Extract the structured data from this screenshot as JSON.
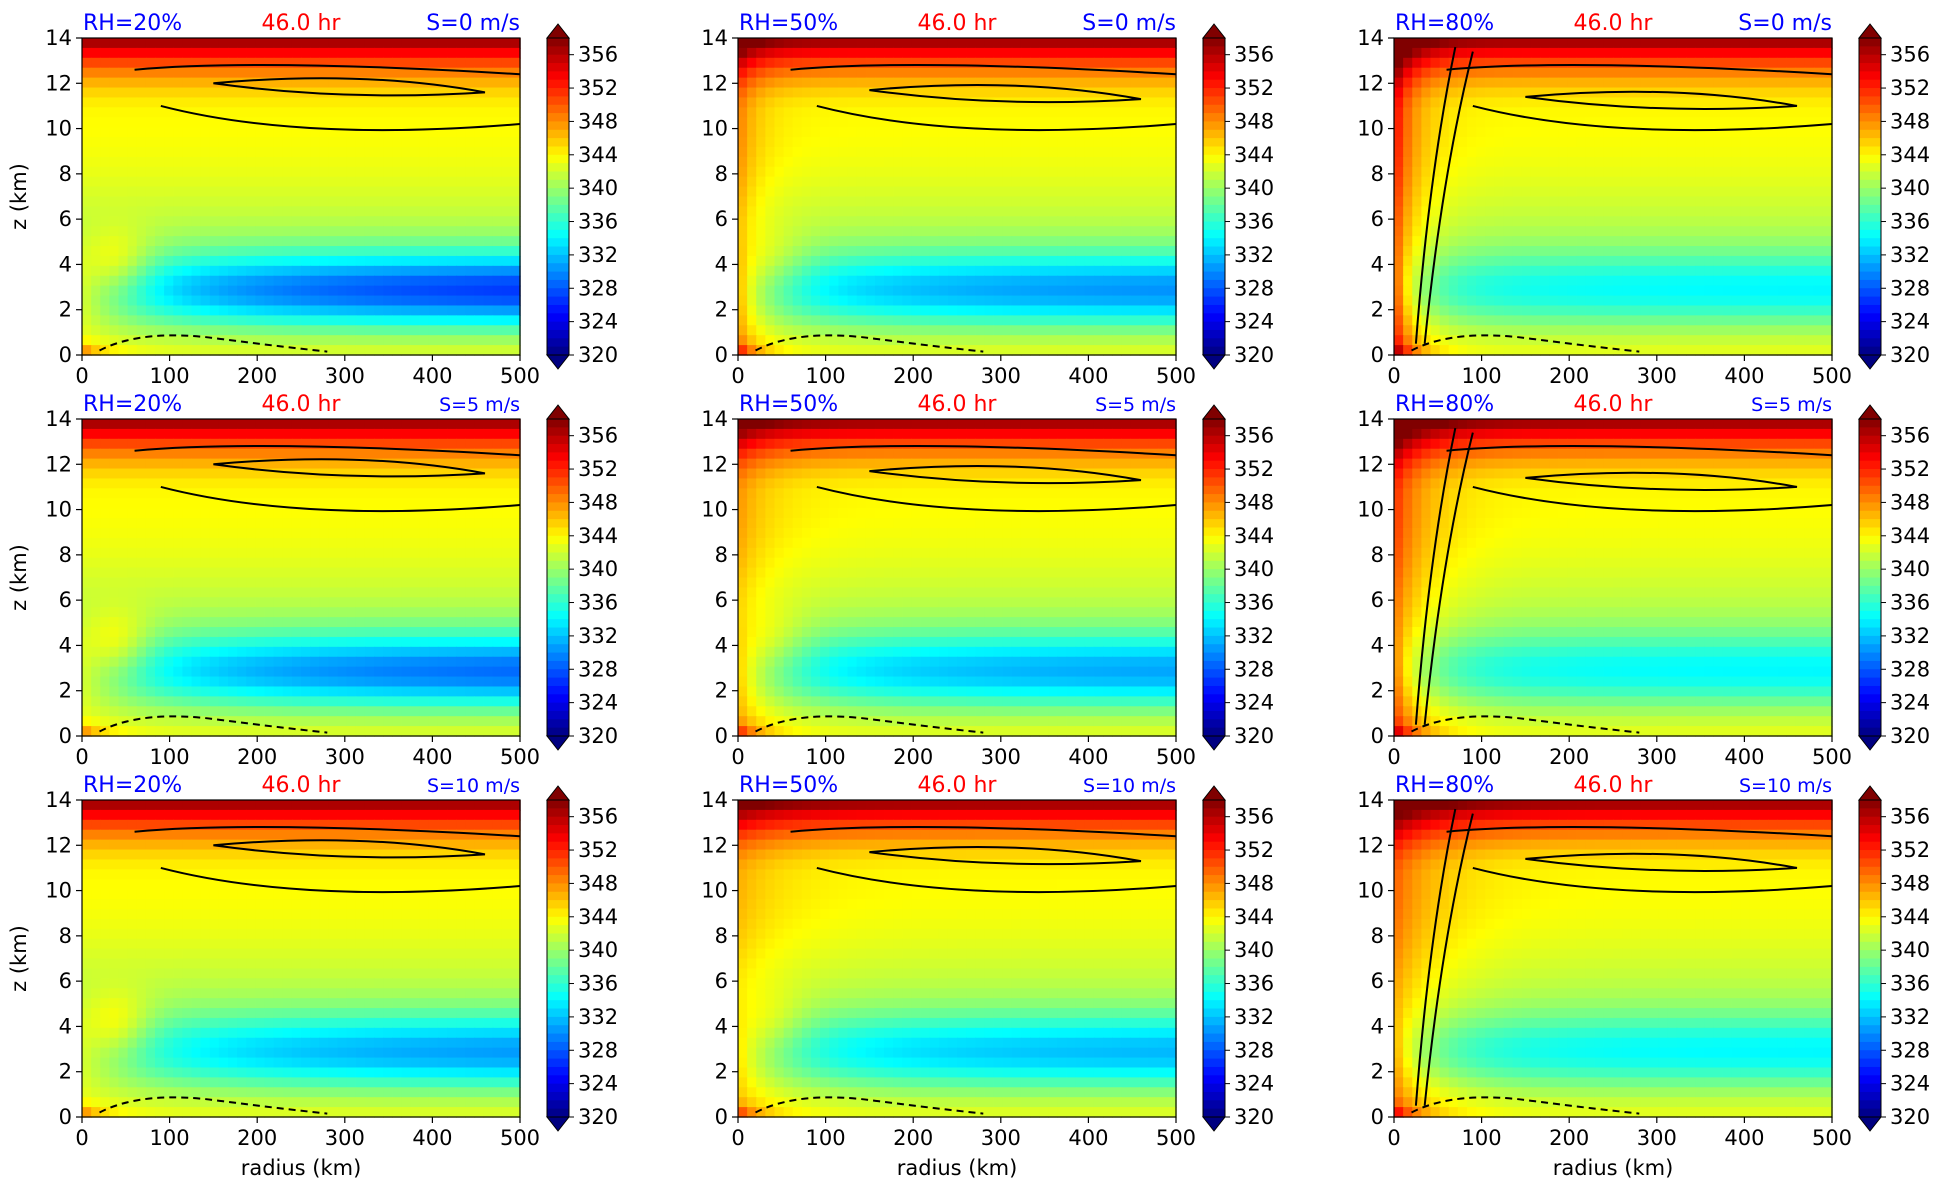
{
  "chart_data": {
    "type": "heatmap",
    "layout": {
      "rows": 3,
      "cols": 3
    },
    "common": {
      "time_label": "46.0 hr",
      "xlabel": "radius (km)",
      "ylabel": "z (km)",
      "xlim": [
        0,
        500
      ],
      "ylim": [
        0,
        14
      ],
      "xticks": [
        0,
        100,
        200,
        300,
        400,
        500
      ],
      "yticks": [
        0,
        2,
        4,
        6,
        8,
        10,
        12,
        14
      ],
      "colorbar": {
        "min": 320,
        "max": 358,
        "extend": "both",
        "ticks": [
          320,
          324,
          328,
          332,
          336,
          340,
          344,
          348,
          352,
          356
        ]
      },
      "colors": {
        "rh_label": "#0000ff",
        "time_label": "#ff0000",
        "shear_label": "#0000ff",
        "contour": "#000000"
      }
    },
    "panels": [
      {
        "rh_label": "RH=20%",
        "shear_label": "S=0 m/s",
        "rh": 20,
        "shear": 0
      },
      {
        "rh_label": "RH=50%",
        "shear_label": "S=0 m/s",
        "rh": 50,
        "shear": 0
      },
      {
        "rh_label": "RH=80%",
        "shear_label": "S=0 m/s",
        "rh": 80,
        "shear": 0
      },
      {
        "rh_label": "RH=20%",
        "shear_label": "S=5 m/s",
        "rh": 20,
        "shear": 5
      },
      {
        "rh_label": "RH=50%",
        "shear_label": "S=5 m/s",
        "rh": 50,
        "shear": 5
      },
      {
        "rh_label": "RH=80%",
        "shear_label": "S=5 m/s",
        "rh": 80,
        "shear": 5
      },
      {
        "rh_label": "RH=20%",
        "shear_label": "S=10 m/s",
        "rh": 20,
        "shear": 10
      },
      {
        "rh_label": "RH=50%",
        "shear_label": "S=10 m/s",
        "rh": 50,
        "shear": 10
      },
      {
        "rh_label": "RH=80%",
        "shear_label": "S=10 m/s",
        "rh": 80,
        "shear": 10
      }
    ]
  }
}
